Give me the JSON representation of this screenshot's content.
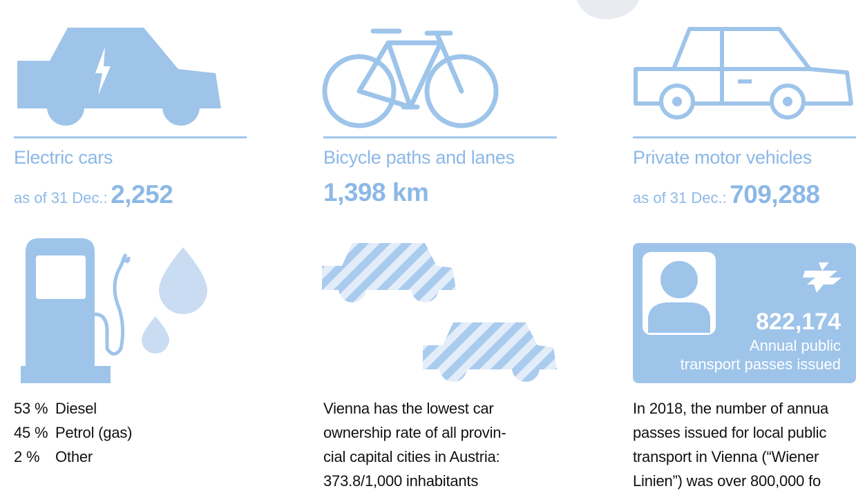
{
  "stats": [
    {
      "title": "Electric cars",
      "prefix": "as of 31 Dec.:",
      "value": "2,252"
    },
    {
      "title": "Bicycle paths and lanes",
      "value": "1,398 km"
    },
    {
      "title": "Private motor vehicles",
      "prefix": "as of 31 Dec.:",
      "value": "709,288"
    }
  ],
  "fuel_shares": [
    {
      "percent": "53 %",
      "label": "Diesel"
    },
    {
      "percent": "45 %",
      "label": "Petrol (gas)"
    },
    {
      "percent": "2 %",
      "label": "Other"
    }
  ],
  "car_ownership": {
    "lines": [
      "Vienna has the lowest car",
      "ownership rate of all provin-",
      "cial capital cities in Austria:",
      "373.8/1,000 inhabitants"
    ]
  },
  "passes": {
    "value": "822,174",
    "caption_lines": [
      "Annual public",
      "transport passes issued"
    ],
    "text_lines": [
      "In 2018, the number of annua",
      "passes issued for local public",
      "transport in Vienna (“Wiener",
      "Linien”) was over 800,000 fo"
    ]
  }
}
